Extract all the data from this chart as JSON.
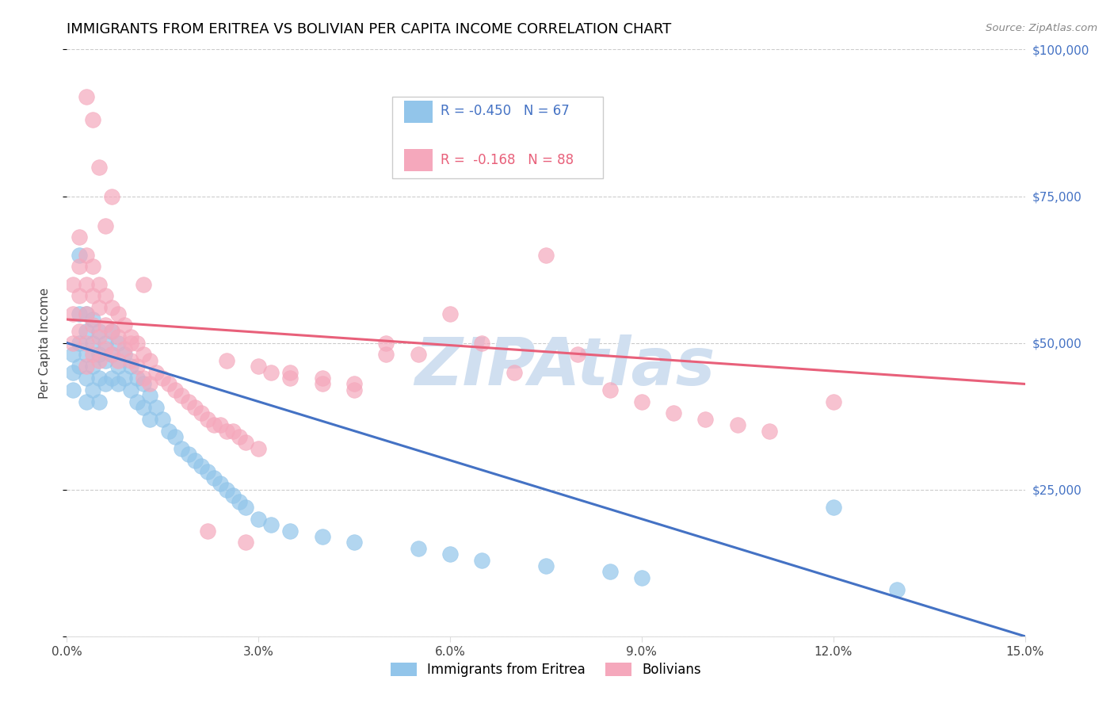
{
  "title": "IMMIGRANTS FROM ERITREA VS BOLIVIAN PER CAPITA INCOME CORRELATION CHART",
  "source": "Source: ZipAtlas.com",
  "ylabel": "Per Capita Income",
  "xlim": [
    0.0,
    0.15
  ],
  "ylim": [
    0,
    100000
  ],
  "xticks": [
    0.0,
    0.03,
    0.06,
    0.09,
    0.12,
    0.15
  ],
  "yticks": [
    0,
    25000,
    50000,
    75000,
    100000
  ],
  "ytick_labels": [
    "",
    "$25,000",
    "$50,000",
    "$75,000",
    "$100,000"
  ],
  "xtick_labels": [
    "0.0%",
    "3.0%",
    "6.0%",
    "9.0%",
    "12.0%",
    "15.0%"
  ],
  "series1_color": "#92C5EA",
  "series2_color": "#F5A8BC",
  "line1_color": "#4472C4",
  "line2_color": "#E8607A",
  "legend1_label": "Immigrants from Eritrea",
  "legend2_label": "Bolivians",
  "r1": -0.45,
  "n1": 67,
  "r2": -0.168,
  "n2": 88,
  "watermark": "ZIPAtlas",
  "watermark_color": "#D0DFF0",
  "title_fontsize": 13,
  "axis_label_fontsize": 11,
  "tick_fontsize": 11,
  "background_color": "#FFFFFF",
  "grid_color": "#CCCCCC",
  "right_tick_color": "#4472C4",
  "line1_x0": 0.0,
  "line1_y0": 50000,
  "line1_x1": 0.15,
  "line1_y1": 0,
  "line2_x0": 0.0,
  "line2_y0": 54000,
  "line2_x1": 0.15,
  "line2_y1": 43000,
  "s1_x": [
    0.001,
    0.001,
    0.001,
    0.002,
    0.002,
    0.002,
    0.002,
    0.003,
    0.003,
    0.003,
    0.003,
    0.003,
    0.004,
    0.004,
    0.004,
    0.004,
    0.005,
    0.005,
    0.005,
    0.005,
    0.006,
    0.006,
    0.006,
    0.007,
    0.007,
    0.007,
    0.008,
    0.008,
    0.008,
    0.009,
    0.009,
    0.01,
    0.01,
    0.011,
    0.011,
    0.012,
    0.012,
    0.013,
    0.013,
    0.014,
    0.015,
    0.016,
    0.017,
    0.018,
    0.019,
    0.02,
    0.021,
    0.022,
    0.023,
    0.024,
    0.025,
    0.026,
    0.027,
    0.028,
    0.03,
    0.032,
    0.035,
    0.04,
    0.045,
    0.055,
    0.06,
    0.065,
    0.075,
    0.085,
    0.09,
    0.12,
    0.13
  ],
  "s1_y": [
    48000,
    45000,
    42000,
    65000,
    55000,
    50000,
    46000,
    55000,
    52000,
    48000,
    44000,
    40000,
    54000,
    50000,
    46000,
    42000,
    52000,
    48000,
    44000,
    40000,
    50000,
    47000,
    43000,
    52000,
    48000,
    44000,
    50000,
    46000,
    43000,
    48000,
    44000,
    46000,
    42000,
    44000,
    40000,
    43000,
    39000,
    41000,
    37000,
    39000,
    37000,
    35000,
    34000,
    32000,
    31000,
    30000,
    29000,
    28000,
    27000,
    26000,
    25000,
    24000,
    23000,
    22000,
    20000,
    19000,
    18000,
    17000,
    16000,
    15000,
    14000,
    13000,
    12000,
    11000,
    10000,
    22000,
    8000
  ],
  "s2_x": [
    0.001,
    0.001,
    0.001,
    0.002,
    0.002,
    0.002,
    0.002,
    0.003,
    0.003,
    0.003,
    0.003,
    0.003,
    0.004,
    0.004,
    0.004,
    0.004,
    0.005,
    0.005,
    0.005,
    0.005,
    0.006,
    0.006,
    0.006,
    0.007,
    0.007,
    0.007,
    0.008,
    0.008,
    0.008,
    0.009,
    0.009,
    0.01,
    0.01,
    0.011,
    0.011,
    0.012,
    0.012,
    0.013,
    0.013,
    0.014,
    0.015,
    0.016,
    0.017,
    0.018,
    0.019,
    0.02,
    0.021,
    0.022,
    0.023,
    0.024,
    0.025,
    0.026,
    0.027,
    0.028,
    0.03,
    0.032,
    0.035,
    0.04,
    0.045,
    0.05,
    0.055,
    0.06,
    0.065,
    0.07,
    0.075,
    0.08,
    0.085,
    0.09,
    0.095,
    0.1,
    0.105,
    0.11,
    0.12,
    0.025,
    0.03,
    0.035,
    0.04,
    0.045,
    0.05,
    0.003,
    0.004,
    0.005,
    0.006,
    0.007,
    0.01,
    0.012,
    0.022,
    0.028
  ],
  "s2_y": [
    60000,
    55000,
    50000,
    68000,
    63000,
    58000,
    52000,
    65000,
    60000,
    55000,
    50000,
    46000,
    63000,
    58000,
    53000,
    48000,
    60000,
    56000,
    51000,
    47000,
    58000,
    53000,
    49000,
    56000,
    52000,
    48000,
    55000,
    51000,
    47000,
    53000,
    49000,
    51000,
    47000,
    50000,
    46000,
    48000,
    44000,
    47000,
    43000,
    45000,
    44000,
    43000,
    42000,
    41000,
    40000,
    39000,
    38000,
    37000,
    36000,
    36000,
    35000,
    35000,
    34000,
    33000,
    32000,
    45000,
    44000,
    43000,
    42000,
    50000,
    48000,
    55000,
    50000,
    45000,
    65000,
    48000,
    42000,
    40000,
    38000,
    37000,
    36000,
    35000,
    40000,
    47000,
    46000,
    45000,
    44000,
    43000,
    48000,
    92000,
    88000,
    80000,
    70000,
    75000,
    50000,
    60000,
    18000,
    16000
  ]
}
